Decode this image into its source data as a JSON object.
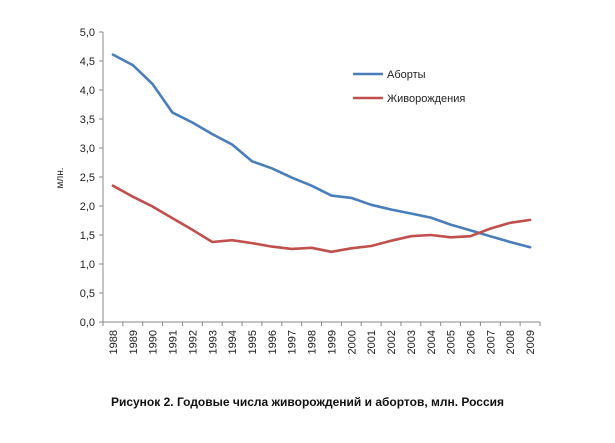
{
  "caption": "Рисунок 2. Годовые числа живорождений и абортов, млн. Россия",
  "chart_data": {
    "type": "line",
    "ylabel": "млн.",
    "xlabel": "",
    "ylim": [
      0,
      5
    ],
    "y_ticks": [
      "0,0",
      "0,5",
      "1,0",
      "1,5",
      "2,0",
      "2,5",
      "3,0",
      "3,5",
      "4,0",
      "4,5",
      "5,0"
    ],
    "x": [
      "1988",
      "1989",
      "1990",
      "1991",
      "1992",
      "1993",
      "1994",
      "1995",
      "1996",
      "1997",
      "1998",
      "1999",
      "2000",
      "2001",
      "2002",
      "2003",
      "2004",
      "2005",
      "2006",
      "2007",
      "2008",
      "2009"
    ],
    "legend_position": "top-right",
    "grid": false,
    "series": [
      {
        "name": "Аборты",
        "color": "#4a7ebb",
        "values": [
          4.61,
          4.43,
          4.1,
          3.61,
          3.44,
          3.24,
          3.06,
          2.77,
          2.65,
          2.49,
          2.35,
          2.18,
          2.14,
          2.02,
          1.94,
          1.87,
          1.8,
          1.68,
          1.58,
          1.48,
          1.38,
          1.29
        ]
      },
      {
        "name": "Живорождения",
        "color": "#c0504d",
        "values": [
          2.35,
          2.16,
          1.99,
          1.79,
          1.59,
          1.38,
          1.41,
          1.36,
          1.3,
          1.26,
          1.28,
          1.21,
          1.27,
          1.31,
          1.4,
          1.48,
          1.5,
          1.46,
          1.48,
          1.61,
          1.71,
          1.76
        ]
      }
    ]
  }
}
